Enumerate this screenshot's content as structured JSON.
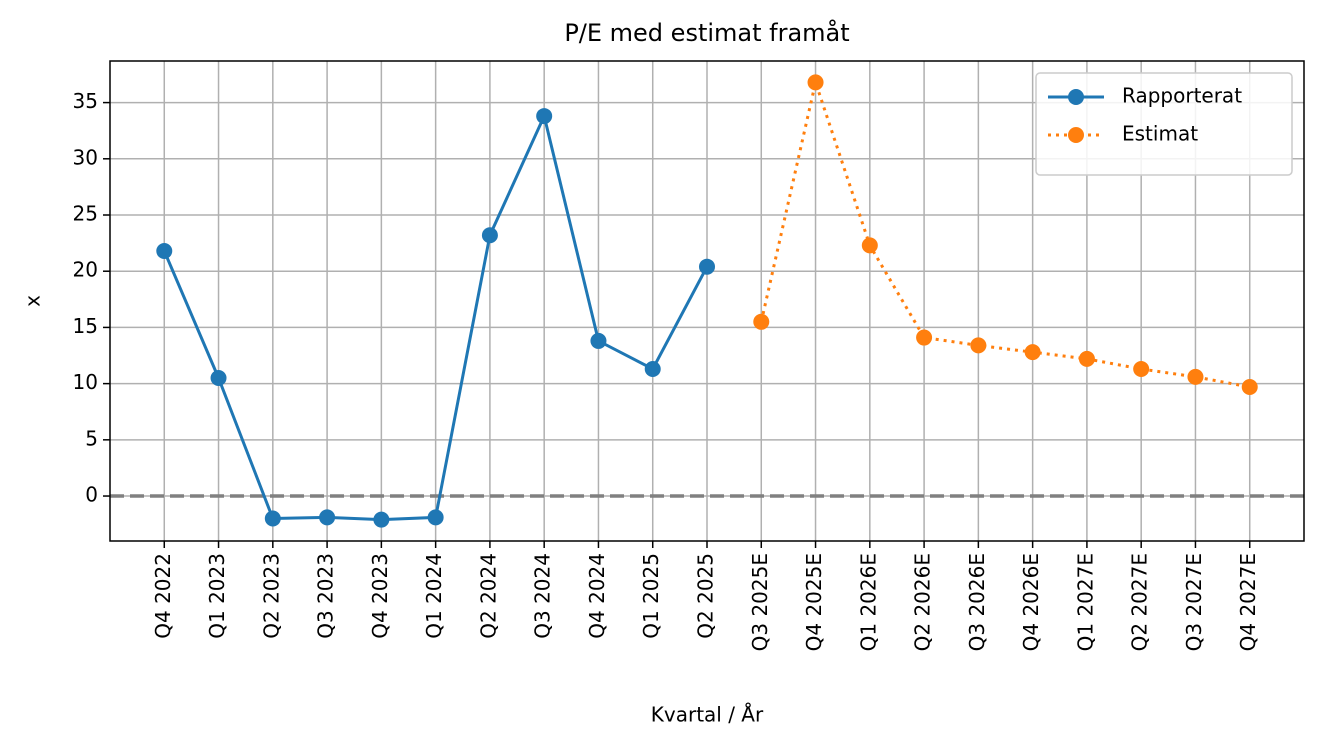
{
  "chart_data": {
    "type": "line",
    "title": "P/E med estimat framåt",
    "xlabel": "Kvartal / År",
    "ylabel": "x",
    "categories": [
      "Q4 2022",
      "Q1 2023",
      "Q2 2023",
      "Q3 2023",
      "Q4 2023",
      "Q1 2024",
      "Q2 2024",
      "Q3 2024",
      "Q4 2024",
      "Q1 2025",
      "Q2 2025",
      "Q3 2025E",
      "Q4 2025E",
      "Q1 2026E",
      "Q2 2026E",
      "Q3 2026E",
      "Q4 2026E",
      "Q1 2027E",
      "Q2 2027E",
      "Q3 2027E",
      "Q4 2027E"
    ],
    "series": [
      {
        "name": "Rapporterat",
        "color": "#1f77b4",
        "linestyle": "solid",
        "values": [
          21.8,
          10.5,
          -2.0,
          -1.9,
          -2.1,
          -1.9,
          23.2,
          33.8,
          13.8,
          11.3,
          20.4,
          null,
          null,
          null,
          null,
          null,
          null,
          null,
          null,
          null,
          null
        ]
      },
      {
        "name": "Estimat",
        "color": "#ff7f0e",
        "linestyle": "dotted",
        "values": [
          null,
          null,
          null,
          null,
          null,
          null,
          null,
          null,
          null,
          null,
          null,
          15.5,
          36.8,
          22.3,
          14.1,
          13.4,
          12.8,
          12.2,
          11.3,
          10.6,
          9.7
        ]
      }
    ],
    "ylim": [
      -4.0,
      38.7
    ],
    "yticks": [
      0,
      5,
      10,
      15,
      20,
      25,
      30,
      35
    ],
    "hline": 0,
    "grid": true,
    "legend": "upper right"
  }
}
